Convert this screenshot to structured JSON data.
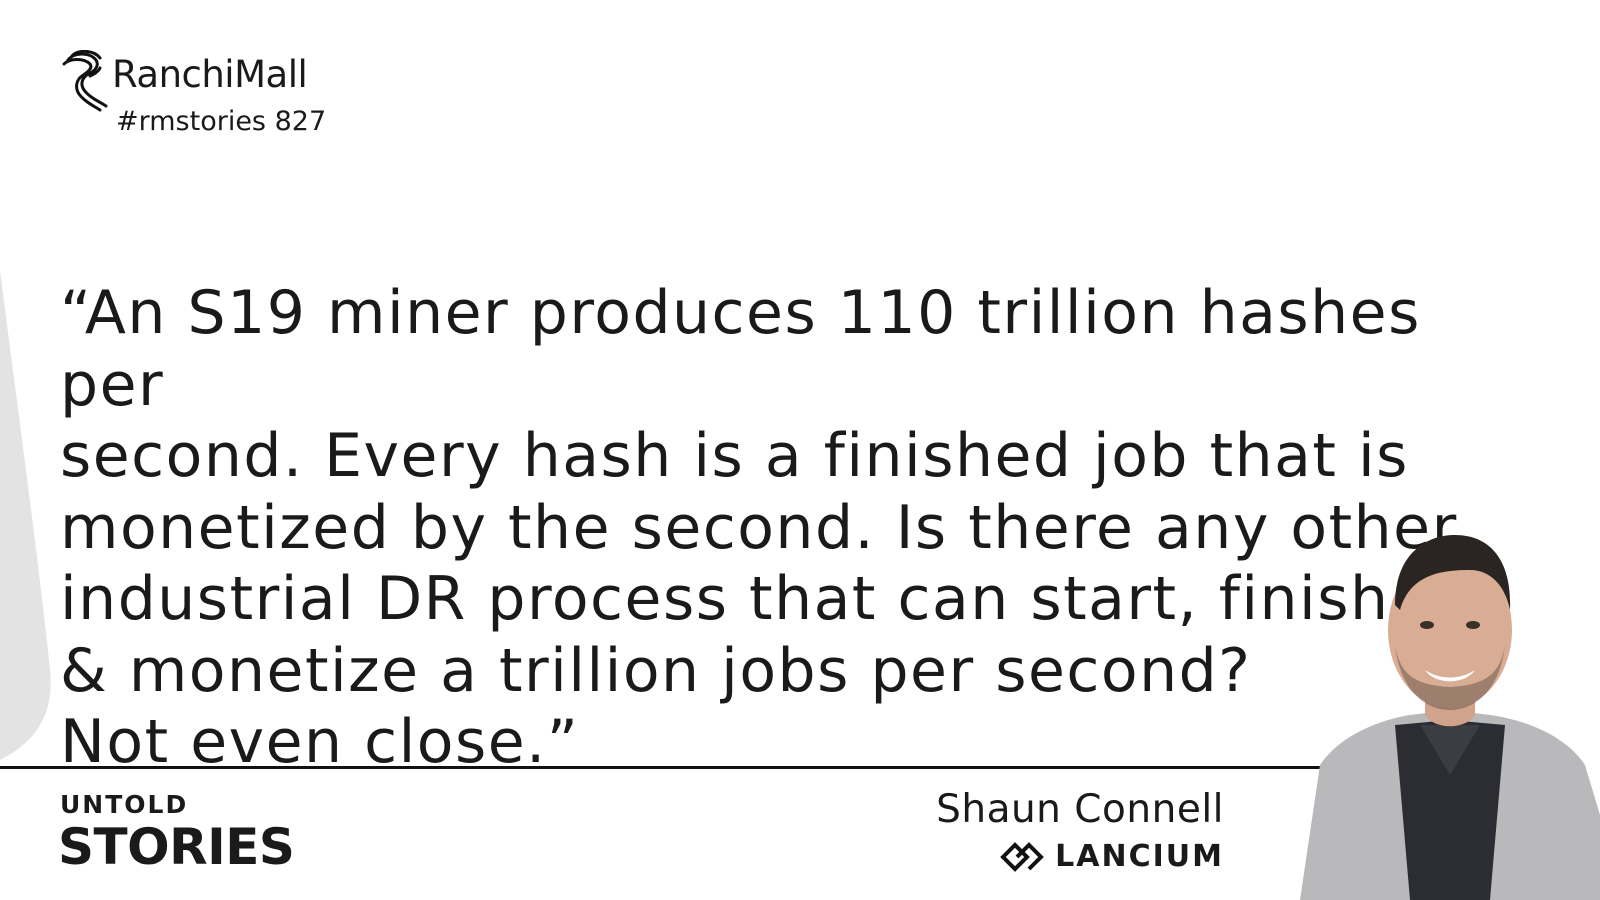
{
  "brand": {
    "name": "RanchiMall",
    "tag": "#rmstories 827",
    "logo_icon": "seahorse-logo-icon"
  },
  "quote": {
    "lines": [
      "“An S19 miner produces 110 trillion hashes per",
      "second. Every hash is a finished job that is",
      "monetized by the second. Is there any other",
      "industrial DR process that can start, finish",
      "& monetize a trillion jobs per second?",
      "Not even close.”"
    ]
  },
  "series": {
    "line1": "UNTOLD",
    "line2": "STORIES"
  },
  "person": {
    "name": "Shaun Connell",
    "company": "LANCIUM",
    "company_icon": "lancium-logo-icon"
  },
  "colors": {
    "text": "#1a1a1a",
    "accent_shape": "#e3e3e3",
    "background": "#ffffff"
  }
}
